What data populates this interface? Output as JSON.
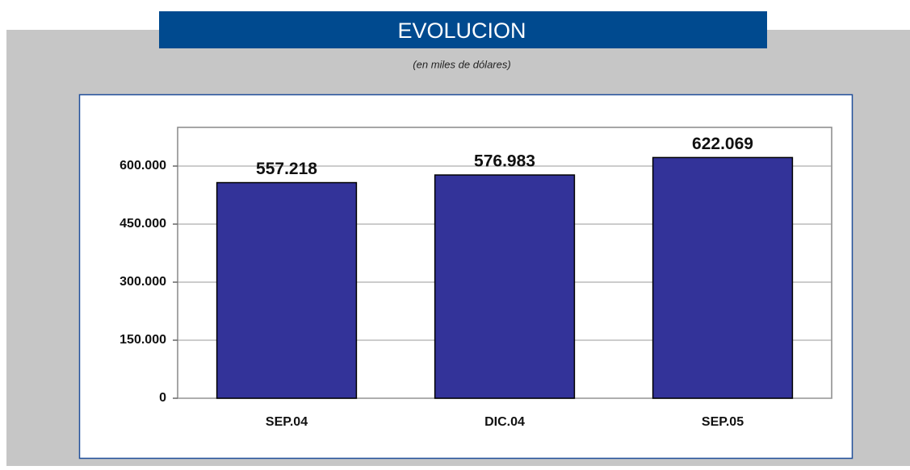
{
  "chart_data": {
    "type": "bar",
    "title": "EVOLUCION",
    "subtitle": "(en miles de dólares)",
    "categories": [
      "SEP.04",
      "DIC.04",
      "SEP.05"
    ],
    "values": [
      557218,
      576983,
      622069
    ],
    "value_labels": [
      "557.218",
      "576.983",
      "622.069"
    ],
    "color": "#333399",
    "ylim": [
      0,
      700000
    ],
    "yticks": [
      0,
      {
        "value": 150000,
        "label": "150.000"
      },
      {
        "value": 300000,
        "label": "300.000"
      },
      {
        "value": 450000,
        "label": "450.000"
      },
      {
        "value": 600000,
        "label": "600.000"
      }
    ],
    "grid": true
  }
}
